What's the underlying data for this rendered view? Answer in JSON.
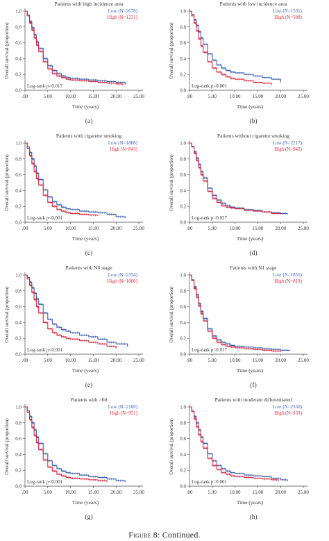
{
  "caption": {
    "figure": "Figure 8:",
    "text": "Continued."
  },
  "colors": {
    "low": "#3a5dab",
    "high": "#d6263d",
    "axis": "#444444"
  },
  "chart_data": [
    {
      "type": "line",
      "panel_label": "(a)",
      "title": "Patients with high incidence area",
      "xlabel": "Time (years)",
      "ylabel": "Overall survival (proportion)",
      "xlim": [
        0,
        25
      ],
      "ylim": [
        0,
        1.0
      ],
      "x_ticks": [
        ".00",
        "5.00",
        "10.00",
        "15.00",
        "20.00",
        "25.00"
      ],
      "y_ticks": [
        "0.0",
        "0.2",
        "0.4",
        "0.6",
        "0.8",
        "1.0"
      ],
      "annotation": "Log-rank p=0.017",
      "series": [
        {
          "name": "Low (N=2678)",
          "x": [
            0,
            0.5,
            1,
            1.5,
            2,
            2.5,
            3,
            4,
            5,
            6,
            7,
            8,
            9,
            10,
            12,
            14,
            16,
            18,
            20,
            22
          ],
          "y": [
            1.0,
            0.95,
            0.87,
            0.79,
            0.7,
            0.61,
            0.53,
            0.4,
            0.31,
            0.25,
            0.21,
            0.18,
            0.16,
            0.15,
            0.14,
            0.13,
            0.12,
            0.11,
            0.1,
            0.07
          ]
        },
        {
          "name": "High (N=1231)",
          "x": [
            0,
            0.5,
            1,
            1.5,
            2,
            2.5,
            3,
            4,
            5,
            6,
            7,
            8,
            9,
            10,
            12,
            14,
            16,
            18,
            20,
            21.5
          ],
          "y": [
            1.0,
            0.94,
            0.85,
            0.76,
            0.66,
            0.57,
            0.49,
            0.36,
            0.27,
            0.21,
            0.18,
            0.16,
            0.14,
            0.13,
            0.12,
            0.11,
            0.1,
            0.09,
            0.08,
            0.06
          ]
        }
      ]
    },
    {
      "type": "line",
      "panel_label": "(b)",
      "title": "Patients with low incidence area",
      "xlabel": "Time (years)",
      "ylabel": "Overall survival (proportion)",
      "xlim": [
        0,
        25
      ],
      "ylim": [
        0,
        1.0
      ],
      "x_ticks": [
        ".00",
        "5.00",
        "10.00",
        "15.00",
        "20.00",
        "25.00"
      ],
      "y_ticks": [
        "0.0",
        "0.2",
        "0.4",
        "0.6",
        "0.8",
        "1.0"
      ],
      "annotation": "Log-rank p<0.001",
      "series": [
        {
          "name": "Low (N=1531)",
          "x": [
            0,
            0.5,
            1,
            1.5,
            2,
            2.5,
            3,
            4,
            5,
            6,
            7,
            8,
            9,
            10,
            12,
            14,
            16,
            18,
            20
          ],
          "y": [
            1.0,
            0.96,
            0.89,
            0.82,
            0.74,
            0.66,
            0.58,
            0.46,
            0.38,
            0.32,
            0.28,
            0.25,
            0.23,
            0.22,
            0.2,
            0.18,
            0.16,
            0.14,
            0.1
          ]
        },
        {
          "name": "High (N=588)",
          "x": [
            0,
            0.5,
            1,
            1.5,
            2,
            2.5,
            3,
            4,
            5,
            6,
            7,
            8,
            9,
            10,
            12,
            14,
            16,
            18
          ],
          "y": [
            1.0,
            0.94,
            0.85,
            0.75,
            0.65,
            0.56,
            0.48,
            0.36,
            0.28,
            0.23,
            0.2,
            0.17,
            0.15,
            0.14,
            0.12,
            0.1,
            0.09,
            0.07
          ]
        }
      ]
    },
    {
      "type": "line",
      "panel_label": "(c)",
      "title": "Patients with cigarette smoking",
      "xlabel": "Time (years)",
      "ylabel": "Overall survival (proportion)",
      "xlim": [
        0,
        25
      ],
      "ylim": [
        0,
        1.0
      ],
      "x_ticks": [
        ".00",
        "5.00",
        "10.00",
        "15.00",
        "20.00",
        "25.00"
      ],
      "y_ticks": [
        "0.0",
        "0.2",
        "0.4",
        "0.6",
        "0.8",
        "1.0"
      ],
      "annotation": "Log-rank p<0.001",
      "series": [
        {
          "name": "Low (N=1888)",
          "x": [
            0,
            0.5,
            1,
            1.5,
            2,
            2.5,
            3,
            4,
            5,
            6,
            7,
            8,
            9,
            10,
            12,
            14,
            16,
            18,
            20,
            22
          ],
          "y": [
            1.0,
            0.95,
            0.88,
            0.8,
            0.71,
            0.62,
            0.54,
            0.41,
            0.32,
            0.26,
            0.22,
            0.19,
            0.17,
            0.16,
            0.14,
            0.13,
            0.12,
            0.1,
            0.07,
            0.05
          ]
        },
        {
          "name": "High (N=843)",
          "x": [
            0,
            0.5,
            1,
            1.5,
            2,
            2.5,
            3,
            4,
            5,
            6,
            7,
            8,
            9,
            10,
            12,
            14,
            16
          ],
          "y": [
            1.0,
            0.93,
            0.84,
            0.74,
            0.64,
            0.55,
            0.47,
            0.34,
            0.25,
            0.2,
            0.16,
            0.14,
            0.12,
            0.11,
            0.1,
            0.09,
            0.08
          ]
        }
      ]
    },
    {
      "type": "line",
      "panel_label": "(d)",
      "title": "Patients without cigarette smoking",
      "xlabel": "Time (years)",
      "ylabel": "Overall survival (proportion)",
      "xlim": [
        0,
        25
      ],
      "ylim": [
        0,
        1.0
      ],
      "x_ticks": [
        ".00",
        "5.00",
        "10.00",
        "15.00",
        "20.00",
        "25.00"
      ],
      "y_ticks": [
        "0.0",
        "0.2",
        "0.4",
        "0.6",
        "0.8",
        "1.0"
      ],
      "annotation": "Log-rank p=0.027",
      "series": [
        {
          "name": "Low (N=2217)",
          "x": [
            0,
            0.5,
            1,
            1.5,
            2,
            2.5,
            3,
            4,
            5,
            6,
            7,
            8,
            9,
            10,
            12,
            14,
            16,
            18,
            20,
            21.5
          ],
          "y": [
            1.0,
            0.96,
            0.89,
            0.81,
            0.73,
            0.64,
            0.56,
            0.43,
            0.34,
            0.28,
            0.24,
            0.21,
            0.19,
            0.18,
            0.16,
            0.15,
            0.13,
            0.12,
            0.11,
            0.1
          ]
        },
        {
          "name": "High (N=943)",
          "x": [
            0,
            0.5,
            1,
            1.5,
            2,
            2.5,
            3,
            4,
            5,
            6,
            7,
            8,
            9,
            10,
            12,
            14,
            16,
            18,
            20
          ],
          "y": [
            1.0,
            0.95,
            0.87,
            0.78,
            0.69,
            0.6,
            0.52,
            0.39,
            0.3,
            0.25,
            0.21,
            0.19,
            0.18,
            0.17,
            0.15,
            0.14,
            0.13,
            0.11,
            0.1
          ]
        }
      ]
    },
    {
      "type": "line",
      "panel_label": "(e)",
      "title": "Patients with N0 stage",
      "xlabel": "Time (years)",
      "ylabel": "Overall survival (proportion)",
      "xlim": [
        0,
        25
      ],
      "ylim": [
        0,
        1.0
      ],
      "x_ticks": [
        ".00",
        "5.00",
        "10.00",
        "15.00",
        "20.00",
        "25.00"
      ],
      "y_ticks": [
        "0.0",
        "0.2",
        "0.4",
        "0.6",
        "0.8",
        "1.0"
      ],
      "annotation": "Log-rank p<0.001",
      "series": [
        {
          "name": "Low (N=2354)",
          "x": [
            0,
            0.5,
            1,
            1.5,
            2,
            2.5,
            3,
            4,
            5,
            6,
            7,
            8,
            9,
            10,
            12,
            14,
            16,
            18,
            20,
            22.5
          ],
          "y": [
            1.0,
            0.97,
            0.91,
            0.84,
            0.77,
            0.7,
            0.63,
            0.52,
            0.44,
            0.38,
            0.34,
            0.31,
            0.29,
            0.27,
            0.24,
            0.22,
            0.19,
            0.15,
            0.13,
            0.1
          ]
        },
        {
          "name": "High (N=1000)",
          "x": [
            0,
            0.5,
            1,
            1.5,
            2,
            2.5,
            3,
            4,
            5,
            6,
            7,
            8,
            9,
            10,
            12,
            14,
            16,
            18,
            20
          ],
          "y": [
            1.0,
            0.95,
            0.87,
            0.78,
            0.69,
            0.6,
            0.52,
            0.4,
            0.32,
            0.27,
            0.24,
            0.22,
            0.2,
            0.19,
            0.17,
            0.15,
            0.13,
            0.1,
            0.07
          ]
        }
      ]
    },
    {
      "type": "line",
      "panel_label": "(f)",
      "title": "Patients with N1 stage",
      "xlabel": "Time (years)",
      "ylabel": "Overall survival (proportion)",
      "xlim": [
        0,
        25
      ],
      "ylim": [
        0,
        1.0
      ],
      "x_ticks": [
        ".00",
        "5.00",
        "10.00",
        "15.00",
        "20.00",
        "25.00"
      ],
      "y_ticks": [
        "0.0",
        "0.2",
        "0.4",
        "0.6",
        "0.8",
        "1.0"
      ],
      "annotation": "Log-rank p=0.017",
      "series": [
        {
          "name": "Low (N=1855)",
          "x": [
            0,
            0.5,
            1,
            1.5,
            2,
            2.5,
            3,
            4,
            5,
            6,
            7,
            8,
            9,
            10,
            12,
            14,
            16,
            18,
            20,
            22
          ],
          "y": [
            1.0,
            0.94,
            0.85,
            0.75,
            0.64,
            0.54,
            0.45,
            0.32,
            0.23,
            0.18,
            0.15,
            0.13,
            0.11,
            0.1,
            0.09,
            0.08,
            0.07,
            0.06,
            0.05,
            0.04
          ]
        },
        {
          "name": "High (N=819)",
          "x": [
            0,
            0.5,
            1,
            1.5,
            2,
            2.5,
            3,
            4,
            5,
            6,
            7,
            8,
            9,
            10,
            12,
            14,
            16,
            18,
            20
          ],
          "y": [
            1.0,
            0.93,
            0.83,
            0.72,
            0.61,
            0.51,
            0.42,
            0.29,
            0.2,
            0.15,
            0.12,
            0.1,
            0.09,
            0.08,
            0.07,
            0.06,
            0.05,
            0.04,
            0.03
          ]
        }
      ]
    },
    {
      "type": "line",
      "panel_label": "(g)",
      "title": "Patients with >60",
      "xlabel": "Time (years)",
      "ylabel": "Overall survival (proportion)",
      "xlim": [
        0,
        25
      ],
      "ylim": [
        0,
        1.0
      ],
      "x_ticks": [
        ".00",
        "5.00",
        "10.00",
        "15.00",
        "20.00",
        "25.00"
      ],
      "y_ticks": [
        "0.0",
        "0.2",
        "0.4",
        "0.6",
        "0.8",
        "1.0"
      ],
      "annotation": "Log-rank p<0.001",
      "series": [
        {
          "name": "Low (N=2160)",
          "x": [
            0,
            0.5,
            1,
            1.5,
            2,
            2.5,
            3,
            4,
            5,
            6,
            7,
            8,
            9,
            10,
            12,
            14,
            16,
            18,
            20,
            22
          ],
          "y": [
            1.0,
            0.95,
            0.88,
            0.8,
            0.71,
            0.62,
            0.54,
            0.41,
            0.32,
            0.26,
            0.22,
            0.19,
            0.17,
            0.16,
            0.14,
            0.12,
            0.11,
            0.09,
            0.07,
            0.05
          ]
        },
        {
          "name": "High (N=951)",
          "x": [
            0,
            0.5,
            1,
            1.5,
            2,
            2.5,
            3,
            4,
            5,
            6,
            7,
            8,
            9,
            10,
            12,
            14,
            16,
            18
          ],
          "y": [
            1.0,
            0.93,
            0.84,
            0.74,
            0.64,
            0.55,
            0.46,
            0.33,
            0.24,
            0.19,
            0.15,
            0.13,
            0.11,
            0.1,
            0.09,
            0.08,
            0.07,
            0.05
          ]
        }
      ]
    },
    {
      "type": "line",
      "panel_label": "(h)",
      "title": "Patients with moderate differentiated",
      "xlabel": "Time (years)",
      "ylabel": "Overall survival (proportion)",
      "xlim": [
        0,
        25
      ],
      "ylim": [
        0,
        1.0
      ],
      "x_ticks": [
        ".00",
        "5.00",
        "10.00",
        "15.00",
        "20.00",
        "25.00"
      ],
      "y_ticks": [
        "0.0",
        "0.2",
        "0.4",
        "0.6",
        "0.8",
        "1.0"
      ],
      "annotation": "Log-rank p=0.001",
      "series": [
        {
          "name": "Low (N=2350)",
          "x": [
            0,
            0.5,
            1,
            1.5,
            2,
            2.5,
            3,
            4,
            5,
            6,
            7,
            8,
            9,
            10,
            12,
            14,
            16,
            18,
            20,
            21.5
          ],
          "y": [
            1.0,
            0.95,
            0.88,
            0.8,
            0.71,
            0.62,
            0.54,
            0.41,
            0.32,
            0.26,
            0.22,
            0.19,
            0.17,
            0.16,
            0.14,
            0.13,
            0.12,
            0.1,
            0.08,
            0.06
          ]
        },
        {
          "name": "High (N=933)",
          "x": [
            0,
            0.5,
            1,
            1.5,
            2,
            2.5,
            3,
            4,
            5,
            6,
            7,
            8,
            9,
            10,
            12,
            14,
            16,
            18,
            19.5
          ],
          "y": [
            1.0,
            0.94,
            0.85,
            0.75,
            0.65,
            0.56,
            0.48,
            0.35,
            0.26,
            0.21,
            0.17,
            0.15,
            0.13,
            0.12,
            0.11,
            0.1,
            0.09,
            0.08,
            0.06
          ]
        }
      ]
    }
  ]
}
